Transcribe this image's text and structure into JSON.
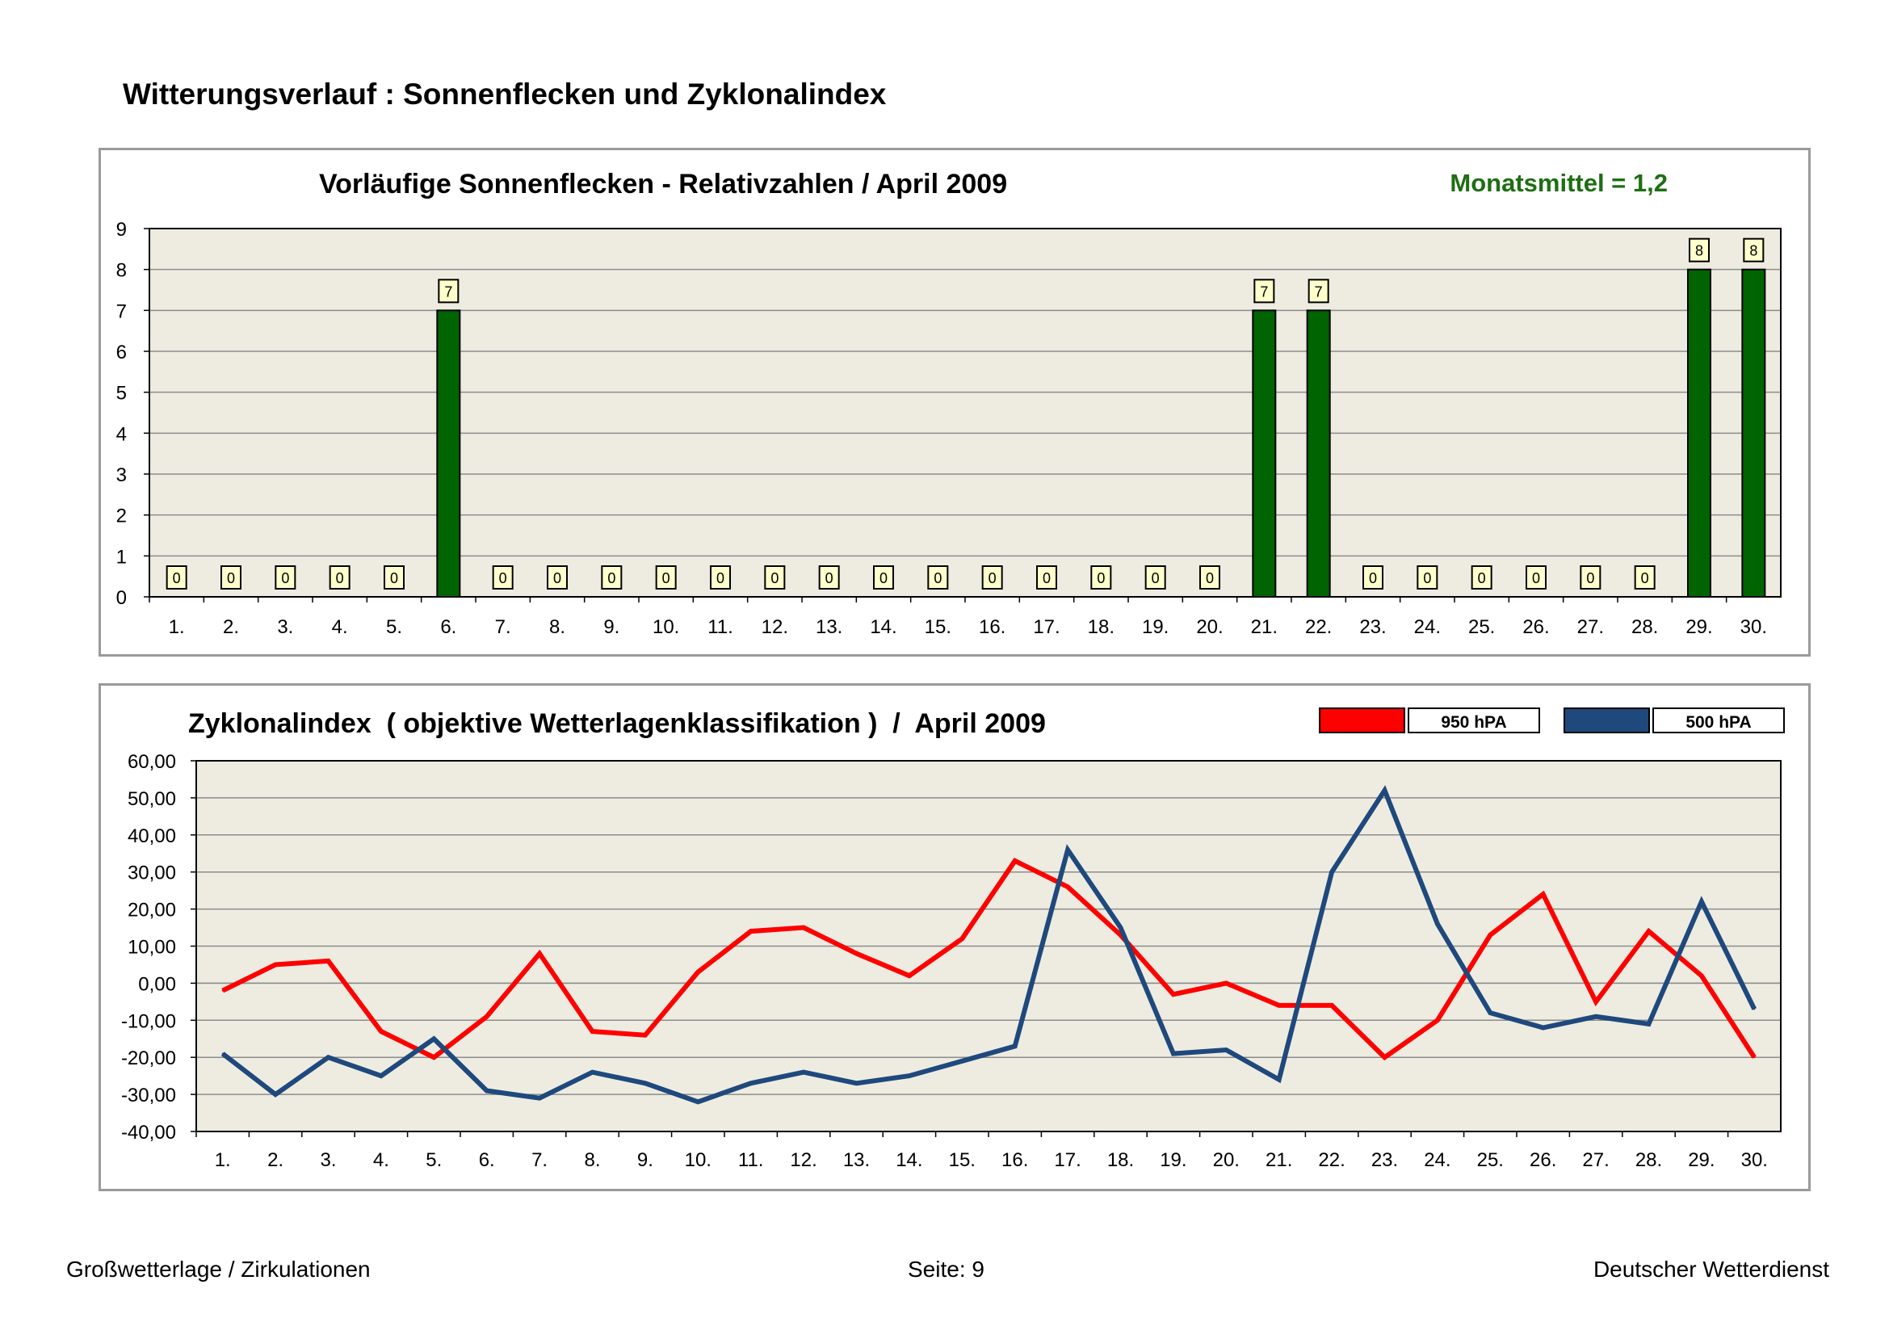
{
  "page": {
    "title": "Witterungsverlauf : Sonnenflecken und Zyklonalindex"
  },
  "footer": {
    "left": "Großwetterlage / Zirkulationen",
    "center": "Seite: 9",
    "right": "Deutscher Wetterdienst"
  },
  "colors": {
    "plot_bg": "#EEECE1",
    "bar_green": "#006400",
    "mean_green": "#1E6E14",
    "line_red": "#FF0000",
    "line_blue": "#1F497D",
    "label_box": "#FFFFCC"
  },
  "chart_data": [
    {
      "type": "bar",
      "title": "Vorläufige Sonnenflecken - Relativzahlen   /   April 2009",
      "annotation": "Monatsmittel = 1,2",
      "xlabel": "",
      "ylabel": "",
      "ylim": [
        0,
        9
      ],
      "yticks": [
        "0",
        "1",
        "2",
        "3",
        "4",
        "5",
        "6",
        "7",
        "8",
        "9"
      ],
      "grid": true,
      "categories": [
        "1.",
        "2.",
        "3.",
        "4.",
        "5.",
        "6.",
        "7.",
        "8.",
        "9.",
        "10.",
        "11.",
        "12.",
        "13.",
        "14.",
        "15.",
        "16.",
        "17.",
        "18.",
        "19.",
        "20.",
        "21.",
        "22.",
        "23.",
        "24.",
        "25.",
        "26.",
        "27.",
        "28.",
        "29.",
        "30."
      ],
      "values": [
        0,
        0,
        0,
        0,
        0,
        7,
        0,
        0,
        0,
        0,
        0,
        0,
        0,
        0,
        0,
        0,
        0,
        0,
        0,
        0,
        7,
        7,
        0,
        0,
        0,
        0,
        0,
        0,
        8,
        8
      ],
      "data_labels": [
        "0",
        "0",
        "0",
        "0",
        "0",
        "7",
        "0",
        "0",
        "0",
        "0",
        "0",
        "0",
        "0",
        "0",
        "0",
        "0",
        "0",
        "0",
        "0",
        "0",
        "7",
        "7",
        "0",
        "0",
        "0",
        "0",
        "0",
        "0",
        "8",
        "8"
      ]
    },
    {
      "type": "line",
      "title": "Zyklonalindex  ( objektive Wetterlagenklassifikation )  /  April 2009",
      "xlabel": "",
      "ylabel": "",
      "ylim": [
        -40,
        60
      ],
      "yticks": [
        "-40,00",
        "-30,00",
        "-20,00",
        "-10,00",
        "0,00",
        "10,00",
        "20,00",
        "30,00",
        "40,00",
        "50,00",
        "60,00"
      ],
      "grid": true,
      "legend": "top-right",
      "categories": [
        "1.",
        "2.",
        "3.",
        "4.",
        "5.",
        "6.",
        "7.",
        "8.",
        "9.",
        "10.",
        "11.",
        "12.",
        "13.",
        "14.",
        "15.",
        "16.",
        "17.",
        "18.",
        "19.",
        "20.",
        "21.",
        "22.",
        "23.",
        "24.",
        "25.",
        "26.",
        "27.",
        "28.",
        "29.",
        "30."
      ],
      "series": [
        {
          "name": "950 hPA",
          "color": "#FF0000",
          "values": [
            -2,
            5,
            6,
            -13,
            -20,
            -9,
            8,
            -13,
            -14,
            3,
            14,
            15,
            8,
            2,
            12,
            33,
            26,
            13,
            -3,
            0,
            -6,
            -6,
            -20,
            -10,
            13,
            24,
            -5,
            14,
            2,
            -20
          ]
        },
        {
          "name": "500 hPA",
          "color": "#1F497D",
          "values": [
            -19,
            -30,
            -20,
            -25,
            -15,
            -29,
            -31,
            -24,
            -27,
            -32,
            -27,
            -24,
            -27,
            -25,
            -21,
            -17,
            36,
            15,
            -19,
            -18,
            -26,
            30,
            52,
            16,
            -8,
            -12,
            -9,
            -11,
            22,
            -7
          ]
        }
      ]
    }
  ]
}
